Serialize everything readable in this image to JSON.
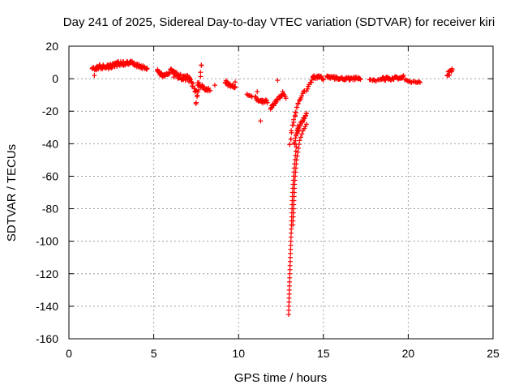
{
  "chart_data": {
    "type": "scatter",
    "title": "Day 241 of 2025, Sidereal Day-to-day VTEC variation (SDTVAR) for receiver kiri",
    "xlabel": "GPS time / hours",
    "ylabel": "SDTVAR / TECUs",
    "xlim": [
      0,
      25
    ],
    "ylim": [
      -160,
      20
    ],
    "xticks": [
      0,
      5,
      10,
      15,
      20,
      25
    ],
    "yticks": [
      20,
      0,
      -20,
      -40,
      -60,
      -80,
      -100,
      -120,
      -140,
      -160
    ],
    "grid": true,
    "marker": "+",
    "series_color": "#ff0000",
    "segments": [
      {
        "x0": 1.4,
        "x1": 2.2,
        "pts": [
          [
            1.4,
            6
          ],
          [
            1.8,
            7
          ],
          [
            2.2,
            8
          ]
        ],
        "spread": 3
      },
      {
        "x0": 2.2,
        "x1": 3.6,
        "pts": [
          [
            2.2,
            7
          ],
          [
            2.9,
            9
          ],
          [
            3.6,
            10
          ]
        ],
        "spread": 3
      },
      {
        "x0": 3.6,
        "x1": 4.6,
        "pts": [
          [
            3.6,
            10
          ],
          [
            4.1,
            8
          ],
          [
            4.6,
            6
          ]
        ],
        "spread": 2
      },
      {
        "x0": 5.2,
        "x1": 5.9,
        "pts": [
          [
            5.2,
            5
          ],
          [
            5.5,
            2
          ],
          [
            5.9,
            3
          ]
        ],
        "spread": 2
      },
      {
        "x0": 6.0,
        "x1": 7.0,
        "pts": [
          [
            6.0,
            4
          ],
          [
            6.5,
            1
          ],
          [
            7.0,
            0
          ]
        ],
        "spread": 4
      },
      {
        "x0": 7.0,
        "x1": 7.5,
        "pts": [
          [
            7.0,
            0
          ],
          [
            7.3,
            -4
          ],
          [
            7.5,
            -8
          ]
        ],
        "spread": 4
      },
      {
        "x0": 7.5,
        "x1": 7.8,
        "pts": [
          [
            7.5,
            -14
          ],
          [
            7.6,
            -10
          ],
          [
            7.8,
            8
          ]
        ],
        "spread": 3
      },
      {
        "x0": 7.6,
        "x1": 8.3,
        "pts": [
          [
            7.6,
            -3
          ],
          [
            8.0,
            -6
          ],
          [
            8.3,
            -7
          ]
        ],
        "spread": 2
      },
      {
        "x0": 9.2,
        "x1": 9.8,
        "pts": [
          [
            9.2,
            -2
          ],
          [
            9.5,
            -4
          ],
          [
            9.8,
            -5
          ]
        ],
        "spread": 3
      },
      {
        "x0": 10.5,
        "x1": 10.8,
        "pts": [
          [
            10.5,
            -10
          ],
          [
            10.8,
            -11
          ]
        ],
        "spread": 1
      },
      {
        "x0": 11.0,
        "x1": 11.7,
        "pts": [
          [
            11.0,
            -12
          ],
          [
            11.3,
            -14
          ],
          [
            11.7,
            -14
          ]
        ],
        "spread": 2
      },
      {
        "x0": 11.9,
        "x1": 12.6,
        "pts": [
          [
            11.9,
            -18
          ],
          [
            12.2,
            -14
          ],
          [
            12.6,
            -9
          ]
        ],
        "spread": 2
      },
      {
        "x0": 12.6,
        "x1": 12.8,
        "pts": [
          [
            12.6,
            -8
          ],
          [
            12.7,
            -10
          ],
          [
            12.8,
            -12
          ]
        ],
        "spread": 1
      },
      {
        "x0": 13.0,
        "x1": 13.5,
        "pts": [
          [
            13.0,
            -40
          ],
          [
            13.2,
            -28
          ],
          [
            13.5,
            -15
          ]
        ],
        "spread": 2
      },
      {
        "x0": 13.5,
        "x1": 13.9,
        "pts": [
          [
            13.5,
            -15
          ],
          [
            13.7,
            -11
          ],
          [
            13.9,
            -7
          ]
        ],
        "spread": 1
      },
      {
        "x0": 13.3,
        "x1": 13.5,
        "pts": [
          [
            13.3,
            -40
          ],
          [
            13.4,
            -35
          ],
          [
            13.5,
            -30
          ]
        ],
        "spread": 2
      },
      {
        "x0": 13.5,
        "x1": 14.0,
        "pts": [
          [
            13.5,
            -32
          ],
          [
            13.75,
            -26
          ],
          [
            14.0,
            -22
          ]
        ],
        "spread": 2
      },
      {
        "x0": 14.0,
        "x1": 14.4,
        "pts": [
          [
            14.0,
            -8
          ],
          [
            14.2,
            -3
          ],
          [
            14.4,
            0
          ]
        ],
        "spread": 1
      },
      {
        "x0": 14.4,
        "x1": 15.0,
        "pts": [
          [
            14.4,
            1
          ],
          [
            14.7,
            1
          ],
          [
            15.0,
            0
          ]
        ],
        "spread": 2
      },
      {
        "x0": 15.2,
        "x1": 17.2,
        "pts": [
          [
            15.2,
            1
          ],
          [
            16.2,
            0
          ],
          [
            17.2,
            0
          ]
        ],
        "spread": 2
      },
      {
        "x0": 17.7,
        "x1": 18.5,
        "pts": [
          [
            17.7,
            -1
          ],
          [
            18.1,
            -1
          ],
          [
            18.5,
            0
          ]
        ],
        "spread": 1
      },
      {
        "x0": 18.5,
        "x1": 19.7,
        "pts": [
          [
            18.5,
            0
          ],
          [
            19.1,
            0
          ],
          [
            19.7,
            1
          ]
        ],
        "spread": 2
      },
      {
        "x0": 19.8,
        "x1": 20.7,
        "pts": [
          [
            19.8,
            -1
          ],
          [
            20.25,
            -2
          ],
          [
            20.7,
            -2
          ]
        ],
        "spread": 1
      },
      {
        "x0": 22.3,
        "x1": 22.6,
        "pts": [
          [
            22.3,
            2
          ],
          [
            22.45,
            4
          ],
          [
            22.6,
            5
          ]
        ],
        "spread": 3
      }
    ],
    "dip_branches": [
      {
        "name": "first",
        "pts": [
          [
            12.95,
            -145
          ],
          [
            13.02,
            -120
          ],
          [
            13.1,
            -95
          ],
          [
            13.18,
            -70
          ],
          [
            13.28,
            -55
          ],
          [
            13.4,
            -42
          ]
        ]
      },
      {
        "name": "second",
        "pts": [
          [
            13.2,
            -90
          ],
          [
            13.3,
            -65
          ],
          [
            13.42,
            -50
          ],
          [
            13.6,
            -38
          ],
          [
            13.8,
            -32
          ],
          [
            14.0,
            -28
          ]
        ]
      }
    ],
    "isolated_points": [
      [
        11.3,
        -26
      ],
      [
        11.1,
        -8
      ],
      [
        9.8,
        -2
      ],
      [
        8.6,
        -4
      ],
      [
        1.5,
        2
      ],
      [
        12.3,
        -1
      ]
    ]
  }
}
